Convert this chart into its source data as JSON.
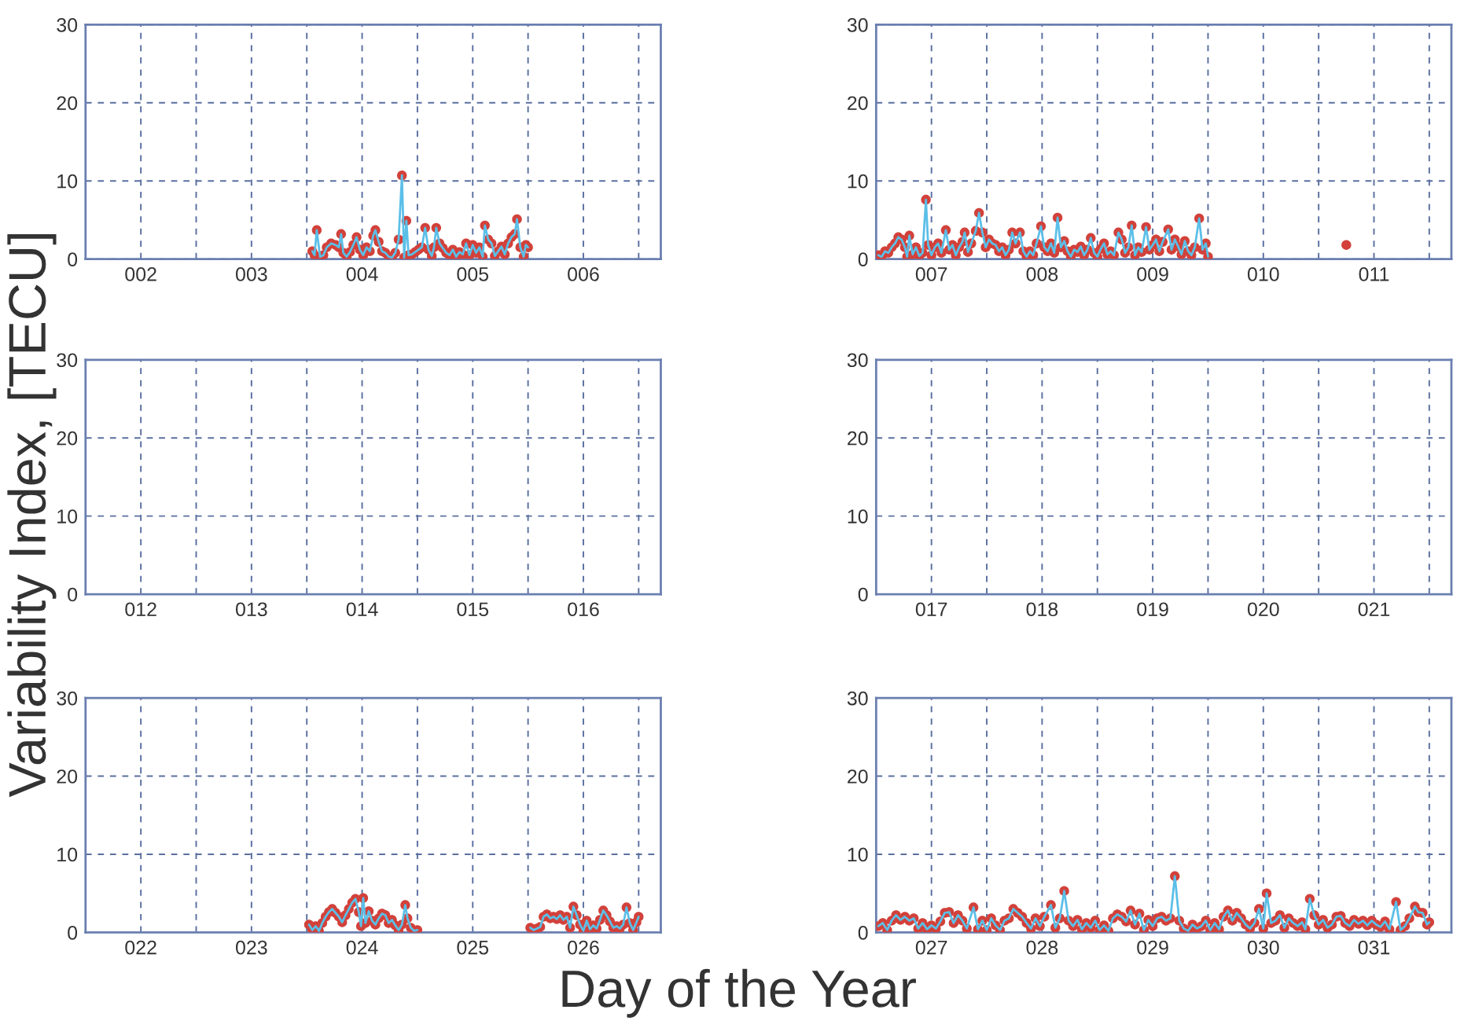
{
  "chart_data": [
    {
      "type": "line",
      "xlim": [
        1.5,
        6.7
      ],
      "xticks": [
        {
          "value": 2,
          "label": "002"
        },
        {
          "value": 2.5,
          "label": null
        },
        {
          "value": 3,
          "label": "003"
        },
        {
          "value": 3.5,
          "label": null
        },
        {
          "value": 4,
          "label": "004"
        },
        {
          "value": 4.5,
          "label": null
        },
        {
          "value": 5,
          "label": "005"
        },
        {
          "value": 5.5,
          "label": null
        },
        {
          "value": 6,
          "label": "006"
        },
        {
          "value": 6.5,
          "label": null
        }
      ],
      "ylim": [
        0,
        30
      ],
      "yticks": [
        0,
        10,
        20,
        30
      ],
      "grid": true,
      "series": [
        {
          "type": "line",
          "color": "#5bbfe8",
          "marker": "none",
          "x": [
            3.55,
            3.57,
            3.59,
            3.62,
            3.65,
            3.68,
            3.72,
            3.76,
            3.79,
            3.81,
            3.83,
            3.86,
            3.89,
            3.92,
            3.95,
            3.98,
            4.01,
            4.04,
            4.07,
            4.1,
            4.12,
            4.15,
            4.18,
            4.21,
            4.24,
            4.27,
            4.3,
            4.33,
            4.36,
            4.38,
            4.4,
            4.42,
            4.45,
            4.48,
            4.51,
            4.54,
            4.57,
            4.6,
            4.63,
            4.65,
            4.67,
            4.7,
            4.73,
            4.76,
            4.79,
            4.82,
            4.85,
            4.88,
            4.91,
            4.94,
            4.97,
            5.0,
            5.03,
            5.06,
            5.09,
            5.11,
            5.14,
            5.17,
            5.2,
            5.23,
            5.26,
            5.29,
            5.32,
            5.35,
            5.38,
            5.4,
            5.43,
            5.46,
            5.48,
            5.5
          ],
          "values": [
            1.0,
            0.5,
            3.7,
            0.3,
            0.5,
            1.5,
            2.0,
            1.8,
            1.5,
            3.2,
            0.8,
            0.3,
            0.9,
            1.8,
            2.8,
            1.2,
            0.5,
            1.5,
            1.0,
            3.0,
            3.7,
            2.2,
            1.0,
            0.8,
            0.3,
            0.2,
            0.8,
            2.5,
            10.7,
            0.2,
            4.9,
            0.5,
            0.6,
            0.9,
            1.2,
            1.5,
            4.0,
            1.2,
            0.4,
            1.5,
            4.0,
            2.0,
            1.4,
            0.8,
            0.5,
            1.2,
            0.3,
            0.9,
            0.6,
            2.0,
            0.5,
            1.8,
            0.8,
            1.5,
            0.3,
            4.3,
            2.5,
            2.0,
            0.4,
            1.0,
            1.6,
            0.6,
            2.0,
            2.8,
            3.2,
            5.1,
            1.5,
            0.3,
            1.8,
            1.5
          ]
        },
        {
          "type": "scatter",
          "color": "#d2413a",
          "marker": "circle",
          "x": [
            3.55,
            3.57,
            3.59,
            3.62,
            3.65,
            3.68,
            3.72,
            3.76,
            3.79,
            3.81,
            3.83,
            3.86,
            3.89,
            3.92,
            3.95,
            3.98,
            4.01,
            4.04,
            4.07,
            4.1,
            4.12,
            4.15,
            4.18,
            4.21,
            4.24,
            4.27,
            4.3,
            4.33,
            4.36,
            4.38,
            4.4,
            4.42,
            4.45,
            4.48,
            4.51,
            4.54,
            4.57,
            4.6,
            4.63,
            4.65,
            4.67,
            4.7,
            4.73,
            4.76,
            4.79,
            4.82,
            4.85,
            4.88,
            4.91,
            4.94,
            4.97,
            5.0,
            5.03,
            5.06,
            5.09,
            5.11,
            5.14,
            5.17,
            5.2,
            5.23,
            5.26,
            5.29,
            5.32,
            5.35,
            5.38,
            5.4,
            5.43,
            5.46,
            5.48,
            5.5
          ],
          "values": [
            1.0,
            0.5,
            3.7,
            0.3,
            0.5,
            1.5,
            2.0,
            1.8,
            1.5,
            3.2,
            0.8,
            0.3,
            0.9,
            1.8,
            2.8,
            1.2,
            0.5,
            1.5,
            1.0,
            3.0,
            3.7,
            2.2,
            1.0,
            0.8,
            0.3,
            0.2,
            0.8,
            2.5,
            10.7,
            0.2,
            4.9,
            0.5,
            0.6,
            0.9,
            1.2,
            1.5,
            4.0,
            1.2,
            0.4,
            1.5,
            4.0,
            2.0,
            1.4,
            0.8,
            0.5,
            1.2,
            0.3,
            0.9,
            0.6,
            2.0,
            0.5,
            1.8,
            0.8,
            1.5,
            0.3,
            4.3,
            2.5,
            2.0,
            0.4,
            1.0,
            1.6,
            0.6,
            2.0,
            2.8,
            3.2,
            5.1,
            1.5,
            0.3,
            1.8,
            1.5
          ]
        }
      ]
    },
    {
      "type": "line",
      "xlim": [
        6.5,
        11.7
      ],
      "xticks": [
        {
          "value": 7,
          "label": "007"
        },
        {
          "value": 7.5,
          "label": null
        },
        {
          "value": 8,
          "label": "008"
        },
        {
          "value": 8.5,
          "label": null
        },
        {
          "value": 9,
          "label": "009"
        },
        {
          "value": 9.5,
          "label": null
        },
        {
          "value": 10,
          "label": "010"
        },
        {
          "value": 10.5,
          "label": null
        },
        {
          "value": 11,
          "label": "011"
        },
        {
          "value": 11.5,
          "label": null
        }
      ],
      "ylim": [
        0,
        30
      ],
      "yticks": [
        0,
        10,
        20,
        30
      ],
      "grid": true,
      "series": [
        {
          "type": "line",
          "color": "#5bbfe8",
          "marker": "none",
          "x": [
            6.52,
            6.55,
            6.58,
            6.61,
            6.64,
            6.67,
            6.7,
            6.73,
            6.76,
            6.78,
            6.8,
            6.83,
            6.86,
            6.89,
            6.92,
            6.95,
            6.97,
            7.0,
            7.03,
            7.06,
            7.09,
            7.13,
            7.16,
            7.19,
            7.22,
            7.25,
            7.28,
            7.3,
            7.33,
            7.36,
            7.4,
            7.43,
            7.46,
            7.49,
            7.52,
            7.55,
            7.58,
            7.61,
            7.64,
            7.67,
            7.7,
            7.73,
            7.76,
            7.8,
            7.83,
            7.86,
            7.89,
            7.92,
            7.95,
            7.99,
            8.02,
            8.05,
            8.08,
            8.11,
            8.14,
            8.17,
            8.2,
            8.23,
            8.26,
            8.29,
            8.32,
            8.35,
            8.38,
            8.41,
            8.44,
            8.47,
            8.5,
            8.53,
            8.56,
            8.59,
            8.62,
            8.65,
            8.69,
            8.72,
            8.75,
            8.78,
            8.81,
            8.84,
            8.87,
            8.9,
            8.94,
            8.97,
            9.0,
            9.03,
            9.06,
            9.09,
            9.14,
            9.17,
            9.2,
            9.23,
            9.26,
            9.29,
            9.32,
            9.35,
            9.38,
            9.42,
            9.45,
            9.48,
            9.5
          ],
          "values": [
            0.5,
            0.3,
            1.0,
            0.8,
            1.5,
            2.0,
            2.8,
            2.5,
            1.5,
            0.3,
            3.0,
            0.6,
            1.5,
            0.4,
            0.8,
            7.6,
            1.8,
            0.5,
            1.5,
            2.0,
            0.8,
            3.7,
            1.2,
            1.8,
            0.5,
            1.5,
            2.2,
            3.4,
            0.9,
            2.0,
            3.6,
            5.9,
            3.4,
            1.5,
            2.5,
            2.0,
            1.8,
            1.0,
            1.5,
            0.5,
            1.2,
            3.4,
            2.0,
            3.4,
            1.0,
            0.3,
            1.0,
            0.5,
            2.0,
            4.2,
            1.5,
            1.0,
            2.0,
            0.8,
            5.3,
            1.5,
            2.3,
            1.0,
            0.3,
            1.2,
            0.9,
            1.6,
            0.5,
            1.2,
            2.7,
            0.8,
            0.3,
            1.3,
            2.0,
            0.6,
            1.0,
            0.5,
            3.4,
            2.5,
            0.8,
            1.5,
            4.3,
            0.5,
            1.5,
            0.9,
            4.1,
            1.2,
            1.8,
            2.5,
            1.0,
            2.2,
            3.8,
            1.2,
            2.5,
            1.6,
            0.6,
            2.3,
            1.0,
            0.5,
            1.5,
            5.2,
            1.2,
            2.0,
            0.3
          ]
        },
        {
          "type": "scatter",
          "color": "#d2413a",
          "marker": "circle",
          "x": [
            6.52,
            6.55,
            6.58,
            6.61,
            6.64,
            6.67,
            6.7,
            6.73,
            6.76,
            6.78,
            6.8,
            6.83,
            6.86,
            6.89,
            6.92,
            6.95,
            6.97,
            7.0,
            7.03,
            7.06,
            7.09,
            7.13,
            7.16,
            7.19,
            7.22,
            7.25,
            7.28,
            7.3,
            7.33,
            7.36,
            7.4,
            7.43,
            7.46,
            7.49,
            7.52,
            7.55,
            7.58,
            7.61,
            7.64,
            7.67,
            7.7,
            7.73,
            7.76,
            7.8,
            7.83,
            7.86,
            7.89,
            7.92,
            7.95,
            7.99,
            8.02,
            8.05,
            8.08,
            8.11,
            8.14,
            8.17,
            8.2,
            8.23,
            8.26,
            8.29,
            8.32,
            8.35,
            8.38,
            8.41,
            8.44,
            8.47,
            8.5,
            8.53,
            8.56,
            8.59,
            8.62,
            8.65,
            8.69,
            8.72,
            8.75,
            8.78,
            8.81,
            8.84,
            8.87,
            8.9,
            8.94,
            8.97,
            9.0,
            9.03,
            9.06,
            9.09,
            9.14,
            9.17,
            9.2,
            9.23,
            9.26,
            9.29,
            9.32,
            9.35,
            9.38,
            9.42,
            9.45,
            9.48,
            9.5,
            10.75
          ],
          "values": [
            0.5,
            0.3,
            1.0,
            0.8,
            1.5,
            2.0,
            2.8,
            2.5,
            1.5,
            0.3,
            3.0,
            0.6,
            1.5,
            0.4,
            0.8,
            7.6,
            1.8,
            0.5,
            1.5,
            2.0,
            0.8,
            3.7,
            1.2,
            1.8,
            0.5,
            1.5,
            2.2,
            3.4,
            0.9,
            2.0,
            3.6,
            5.9,
            3.4,
            1.5,
            2.5,
            2.0,
            1.8,
            1.0,
            1.5,
            0.5,
            1.2,
            3.4,
            2.0,
            3.4,
            1.0,
            0.3,
            1.0,
            0.5,
            2.0,
            4.2,
            1.5,
            1.0,
            2.0,
            0.8,
            5.3,
            1.5,
            2.3,
            1.0,
            0.3,
            1.2,
            0.9,
            1.6,
            0.5,
            1.2,
            2.7,
            0.8,
            0.3,
            1.3,
            2.0,
            0.6,
            1.0,
            0.5,
            3.4,
            2.5,
            0.8,
            1.5,
            4.3,
            0.5,
            1.5,
            0.9,
            4.1,
            1.2,
            1.8,
            2.5,
            1.0,
            2.2,
            3.8,
            1.2,
            2.5,
            1.6,
            0.6,
            2.3,
            1.0,
            0.5,
            1.5,
            5.2,
            1.2,
            2.0,
            0.3,
            1.8
          ]
        }
      ]
    },
    {
      "type": "line",
      "ylabel": "Variability Index, [TECU]",
      "xlim": [
        11.5,
        16.7
      ],
      "xticks": [
        {
          "value": 12,
          "label": "012"
        },
        {
          "value": 12.5,
          "label": null
        },
        {
          "value": 13,
          "label": "013"
        },
        {
          "value": 13.5,
          "label": null
        },
        {
          "value": 14,
          "label": "014"
        },
        {
          "value": 14.5,
          "label": null
        },
        {
          "value": 15,
          "label": "015"
        },
        {
          "value": 15.5,
          "label": null
        },
        {
          "value": 16,
          "label": "016"
        },
        {
          "value": 16.5,
          "label": null
        }
      ],
      "ylim": [
        0,
        30
      ],
      "yticks": [
        0,
        10,
        20,
        30
      ],
      "grid": true
    },
    {
      "type": "line",
      "xlim": [
        16.5,
        21.7
      ],
      "xticks": [
        {
          "value": 17,
          "label": "017"
        },
        {
          "value": 17.5,
          "label": null
        },
        {
          "value": 18,
          "label": "018"
        },
        {
          "value": 18.5,
          "label": null
        },
        {
          "value": 19,
          "label": "019"
        },
        {
          "value": 19.5,
          "label": null
        },
        {
          "value": 20,
          "label": "020"
        },
        {
          "value": 20.5,
          "label": null
        },
        {
          "value": 21,
          "label": "021"
        },
        {
          "value": 21.5,
          "label": null
        }
      ],
      "ylim": [
        0,
        30
      ],
      "yticks": [
        0,
        10,
        20,
        30
      ],
      "grid": true
    },
    {
      "type": "line",
      "xlabel": "Day of the Year",
      "xlim": [
        21.5,
        26.7
      ],
      "xticks": [
        {
          "value": 22,
          "label": "022"
        },
        {
          "value": 22.5,
          "label": null
        },
        {
          "value": 23,
          "label": "023"
        },
        {
          "value": 23.5,
          "label": null
        },
        {
          "value": 24,
          "label": "024"
        },
        {
          "value": 24.5,
          "label": null
        },
        {
          "value": 25,
          "label": "025"
        },
        {
          "value": 25.5,
          "label": null
        },
        {
          "value": 26,
          "label": "026"
        },
        {
          "value": 26.5,
          "label": null
        }
      ],
      "ylim": [
        0,
        30
      ],
      "yticks": [
        0,
        10,
        20,
        30
      ],
      "grid": true,
      "series": [
        {
          "type": "line",
          "color": "#5bbfe8",
          "marker": "none",
          "x": [
            23.52,
            23.55,
            23.58,
            23.61,
            23.64,
            23.67,
            23.7,
            23.73,
            23.76,
            23.79,
            23.82,
            23.85,
            23.88,
            23.91,
            23.94,
            23.97,
            23.99,
            24.01,
            24.03,
            24.06,
            24.09,
            24.12,
            24.15,
            24.18,
            24.21,
            24.24,
            24.27,
            24.3,
            24.33,
            24.36,
            24.39,
            24.41,
            24.44,
            24.47,
            24.5,
            25.0,
            25.52,
            25.55,
            25.58,
            25.61,
            25.64,
            25.67,
            25.7,
            25.73,
            25.76,
            25.79,
            25.82,
            25.85,
            25.88,
            25.91,
            25.94,
            25.97,
            26.0,
            26.03,
            26.06,
            26.09,
            26.12,
            26.15,
            26.18,
            26.21,
            26.24,
            26.27,
            26.3,
            26.33,
            26.36,
            26.39,
            26.42,
            26.45,
            26.48,
            26.5
          ],
          "values": [
            1.0,
            0.3,
            0.8,
            0.2,
            1.2,
            2.0,
            2.6,
            3.0,
            2.5,
            2.0,
            1.3,
            2.2,
            3.0,
            3.8,
            4.3,
            2.6,
            0.8,
            4.4,
            1.2,
            2.7,
            1.5,
            1.0,
            1.8,
            2.4,
            2.2,
            1.2,
            1.6,
            0.9,
            0.3,
            1.0,
            3.5,
            1.8,
            0.6,
            0.2,
            0.3,
            null,
            0.6,
            0.3,
            0.5,
            0.7,
            2.0,
            2.3,
            1.8,
            2.0,
            1.7,
            2.2,
            1.6,
            2.0,
            0.6,
            3.3,
            2.2,
            1.0,
            0.2,
            1.5,
            0.4,
            0.9,
            0.5,
            1.6,
            2.8,
            2.2,
            1.4,
            0.6,
            0.8,
            0.5,
            1.0,
            3.2,
            1.2,
            0.3,
            1.3,
            2.0
          ]
        },
        {
          "type": "scatter",
          "color": "#d2413a",
          "marker": "circle",
          "x": [
            23.52,
            23.55,
            23.58,
            23.61,
            23.64,
            23.67,
            23.7,
            23.73,
            23.76,
            23.79,
            23.82,
            23.85,
            23.88,
            23.91,
            23.94,
            23.97,
            23.99,
            24.01,
            24.03,
            24.06,
            24.09,
            24.12,
            24.15,
            24.18,
            24.21,
            24.24,
            24.27,
            24.3,
            24.33,
            24.36,
            24.39,
            24.41,
            24.44,
            24.47,
            24.5,
            25.0,
            25.52,
            25.55,
            25.58,
            25.61,
            25.64,
            25.67,
            25.7,
            25.73,
            25.76,
            25.79,
            25.82,
            25.85,
            25.88,
            25.91,
            25.94,
            25.97,
            26.0,
            26.03,
            26.06,
            26.09,
            26.12,
            26.15,
            26.18,
            26.21,
            26.24,
            26.27,
            26.3,
            26.33,
            26.36,
            26.39,
            26.42,
            26.45,
            26.48,
            26.5
          ],
          "values": [
            1.0,
            0.3,
            0.8,
            0.2,
            1.2,
            2.0,
            2.6,
            3.0,
            2.5,
            2.0,
            1.3,
            2.2,
            3.0,
            3.8,
            4.3,
            2.6,
            0.8,
            4.4,
            1.2,
            2.7,
            1.5,
            1.0,
            1.8,
            2.4,
            2.2,
            1.2,
            1.6,
            0.9,
            0.3,
            1.0,
            3.5,
            1.8,
            0.6,
            0.2,
            0.3,
            null,
            0.6,
            0.3,
            0.5,
            0.7,
            2.0,
            2.3,
            1.8,
            2.0,
            1.7,
            2.2,
            1.6,
            2.0,
            0.6,
            3.3,
            2.2,
            1.0,
            0.2,
            1.5,
            0.4,
            0.9,
            0.5,
            1.6,
            2.8,
            2.2,
            1.4,
            0.6,
            0.8,
            0.5,
            1.0,
            3.2,
            1.2,
            0.3,
            1.3,
            2.0
          ]
        }
      ]
    },
    {
      "type": "line",
      "xlim": [
        26.5,
        31.7
      ],
      "xticks": [
        {
          "value": 27,
          "label": "027"
        },
        {
          "value": 27.5,
          "label": null
        },
        {
          "value": 28,
          "label": "028"
        },
        {
          "value": 28.5,
          "label": null
        },
        {
          "value": 29,
          "label": "029"
        },
        {
          "value": 29.5,
          "label": null
        },
        {
          "value": 30,
          "label": "030"
        },
        {
          "value": 30.5,
          "label": null
        },
        {
          "value": 31,
          "label": "031"
        },
        {
          "value": 31.5,
          "label": null
        }
      ],
      "ylim": [
        0,
        30
      ],
      "yticks": [
        0,
        10,
        20,
        30
      ],
      "grid": true,
      "series": [
        {
          "type": "line",
          "color": "#5bbfe8",
          "marker": "none",
          "x": [
            26.52,
            26.56,
            26.6,
            26.64,
            26.68,
            26.72,
            26.76,
            26.8,
            26.84,
            26.88,
            26.92,
            26.96,
            27.0,
            27.04,
            27.08,
            27.12,
            27.16,
            27.2,
            27.24,
            27.28,
            27.32,
            27.38,
            27.42,
            27.46,
            27.5,
            27.54,
            27.58,
            27.62,
            27.66,
            27.7,
            27.74,
            27.78,
            27.82,
            27.86,
            27.9,
            27.94,
            27.98,
            28.02,
            28.08,
            28.12,
            28.16,
            28.2,
            28.24,
            28.28,
            28.32,
            28.36,
            28.4,
            28.44,
            28.48,
            28.52,
            28.56,
            28.6,
            28.64,
            28.68,
            28.72,
            28.76,
            28.8,
            28.84,
            28.88,
            28.92,
            28.96,
            29.0,
            29.04,
            29.08,
            29.12,
            29.16,
            29.2,
            29.24,
            29.28,
            29.32,
            29.36,
            29.4,
            29.44,
            29.48,
            29.52,
            29.56,
            29.6,
            29.64,
            29.68,
            29.72,
            29.76,
            29.8,
            29.84,
            29.88,
            29.92,
            29.96,
            30.0,
            30.03,
            30.07,
            30.11,
            30.15,
            30.19,
            30.23,
            30.27,
            30.31,
            30.35,
            30.38,
            30.42,
            30.46,
            30.5,
            30.54,
            30.58,
            30.62,
            30.66,
            30.7,
            30.74,
            30.78,
            30.82,
            30.86,
            30.9,
            30.94,
            30.98,
            31.02,
            31.06,
            31.1,
            31.14,
            31.2,
            31.24,
            31.28,
            31.32,
            31.37,
            31.4,
            31.44,
            31.48,
            31.5
          ],
          "values": [
            0.8,
            1.2,
            0.3,
            1.5,
            2.2,
            1.6,
            2.0,
            1.5,
            1.8,
            0.5,
            1.2,
            0.4,
            0.9,
            0.5,
            1.4,
            2.5,
            2.6,
            1.2,
            2.2,
            1.5,
            0.5,
            3.2,
            0.4,
            1.5,
            0.3,
            1.8,
            0.9,
            0.3,
            1.5,
            1.8,
            3.0,
            2.5,
            2.0,
            1.2,
            0.5,
            1.8,
            0.8,
            2.0,
            3.5,
            0.6,
            1.8,
            5.3,
            1.5,
            0.8,
            1.6,
            0.4,
            1.2,
            0.6,
            1.5,
            0.3,
            0.9,
            0.2,
            1.8,
            2.3,
            2.0,
            1.4,
            2.8,
            1.0,
            2.4,
            0.3,
            1.6,
            0.8,
            1.8,
            2.0,
            1.5,
            1.8,
            7.2,
            1.5,
            0.5,
            0.2,
            1.0,
            0.5,
            0.8,
            1.5,
            0.3,
            1.2,
            0.4,
            2.0,
            2.8,
            1.5,
            2.5,
            1.8,
            1.0,
            0.5,
            1.2,
            3.0,
            0.5,
            5.0,
            1.2,
            1.5,
            2.2,
            0.6,
            1.8,
            1.2,
            0.8,
            1.3,
            0.4,
            4.3,
            2.2,
            1.0,
            1.6,
            0.6,
            1.0,
            2.0,
            2.1,
            1.2,
            0.8,
            1.6,
            1.1,
            1.5,
            0.9,
            1.5,
            1.0,
            0.7,
            1.4,
            0.4,
            3.9,
            0.3,
            0.8,
            1.8,
            3.3,
            2.6,
            2.5,
            1.0,
            1.3
          ]
        },
        {
          "type": "scatter",
          "color": "#d2413a",
          "marker": "circle",
          "x": [
            26.52,
            26.56,
            26.6,
            26.64,
            26.68,
            26.72,
            26.76,
            26.8,
            26.84,
            26.88,
            26.92,
            26.96,
            27.0,
            27.04,
            27.08,
            27.12,
            27.16,
            27.2,
            27.24,
            27.28,
            27.32,
            27.38,
            27.42,
            27.46,
            27.5,
            27.54,
            27.58,
            27.62,
            27.66,
            27.7,
            27.74,
            27.78,
            27.82,
            27.86,
            27.9,
            27.94,
            27.98,
            28.02,
            28.08,
            28.12,
            28.16,
            28.2,
            28.24,
            28.28,
            28.32,
            28.36,
            28.4,
            28.44,
            28.48,
            28.52,
            28.56,
            28.6,
            28.64,
            28.68,
            28.72,
            28.76,
            28.8,
            28.84,
            28.88,
            28.92,
            28.96,
            29.0,
            29.04,
            29.08,
            29.12,
            29.16,
            29.2,
            29.24,
            29.28,
            29.32,
            29.36,
            29.4,
            29.44,
            29.48,
            29.52,
            29.56,
            29.6,
            29.64,
            29.68,
            29.72,
            29.76,
            29.8,
            29.84,
            29.88,
            29.92,
            29.96,
            30.0,
            30.03,
            30.07,
            30.11,
            30.15,
            30.19,
            30.23,
            30.27,
            30.31,
            30.35,
            30.38,
            30.42,
            30.46,
            30.5,
            30.54,
            30.58,
            30.62,
            30.66,
            30.7,
            30.74,
            30.78,
            30.82,
            30.86,
            30.9,
            30.94,
            30.98,
            31.02,
            31.06,
            31.1,
            31.14,
            31.2,
            31.24,
            31.28,
            31.32,
            31.37,
            31.4,
            31.44,
            31.48,
            31.5
          ],
          "values": [
            0.8,
            1.2,
            0.3,
            1.5,
            2.2,
            1.6,
            2.0,
            1.5,
            1.8,
            0.5,
            1.2,
            0.4,
            0.9,
            0.5,
            1.4,
            2.5,
            2.6,
            1.2,
            2.2,
            1.5,
            0.5,
            3.2,
            0.4,
            1.5,
            0.3,
            1.8,
            0.9,
            0.3,
            1.5,
            1.8,
            3.0,
            2.5,
            2.0,
            1.2,
            0.5,
            1.8,
            0.8,
            2.0,
            3.5,
            0.6,
            1.8,
            5.3,
            1.5,
            0.8,
            1.6,
            0.4,
            1.2,
            0.6,
            1.5,
            0.3,
            0.9,
            0.2,
            1.8,
            2.3,
            2.0,
            1.4,
            2.8,
            1.0,
            2.4,
            0.3,
            1.6,
            0.8,
            1.8,
            2.0,
            1.5,
            1.8,
            7.2,
            1.5,
            0.5,
            0.2,
            1.0,
            0.5,
            0.8,
            1.5,
            0.3,
            1.2,
            0.4,
            2.0,
            2.8,
            1.5,
            2.5,
            1.8,
            1.0,
            0.5,
            1.2,
            3.0,
            0.5,
            5.0,
            1.2,
            1.5,
            2.2,
            0.6,
            1.8,
            1.2,
            0.8,
            1.3,
            0.4,
            4.3,
            2.2,
            1.0,
            1.6,
            0.6,
            1.0,
            2.0,
            2.1,
            1.2,
            0.8,
            1.6,
            1.1,
            1.5,
            0.9,
            1.5,
            1.0,
            0.7,
            1.4,
            0.4,
            3.9,
            0.3,
            0.8,
            1.8,
            3.3,
            2.6,
            2.5,
            1.0,
            1.3
          ]
        }
      ]
    }
  ]
}
